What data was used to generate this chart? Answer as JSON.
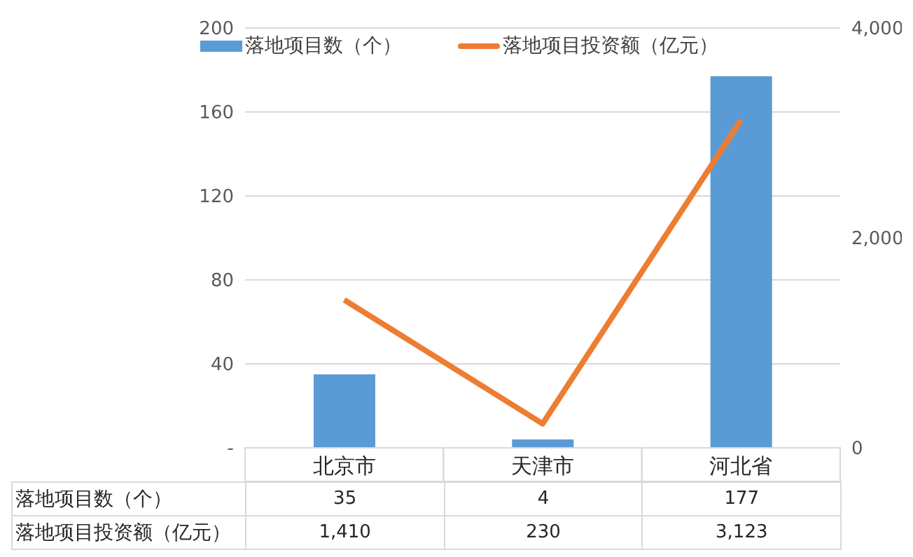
{
  "chart_data": {
    "type": "bar",
    "categories": [
      "北京市",
      "天津市",
      "河北省"
    ],
    "series": [
      {
        "name": "落地项目数（个）",
        "color": "#5b9bd5",
        "values": [
          35,
          4,
          177
        ],
        "value_labels": [
          "35",
          "4",
          "177"
        ]
      },
      {
        "name": "落地项目投资额（亿元）",
        "type": "line",
        "color": "#ed7d31",
        "axis": "y2",
        "values": [
          1410,
          230,
          3123
        ],
        "value_labels": [
          "1,410",
          "230",
          "3,123"
        ]
      }
    ],
    "ylim": [
      0,
      200
    ],
    "yticks": [
      {
        "value": 0,
        "label": "-"
      },
      40,
      80,
      120,
      160,
      200
    ],
    "y2lim": [
      0,
      4000
    ],
    "y2ticks": [
      0,
      {
        "value": 2000,
        "label": "2,000"
      },
      {
        "value": 4000,
        "label": "4,000"
      }
    ],
    "grid": "y",
    "legend": "top",
    "marker": "none"
  }
}
